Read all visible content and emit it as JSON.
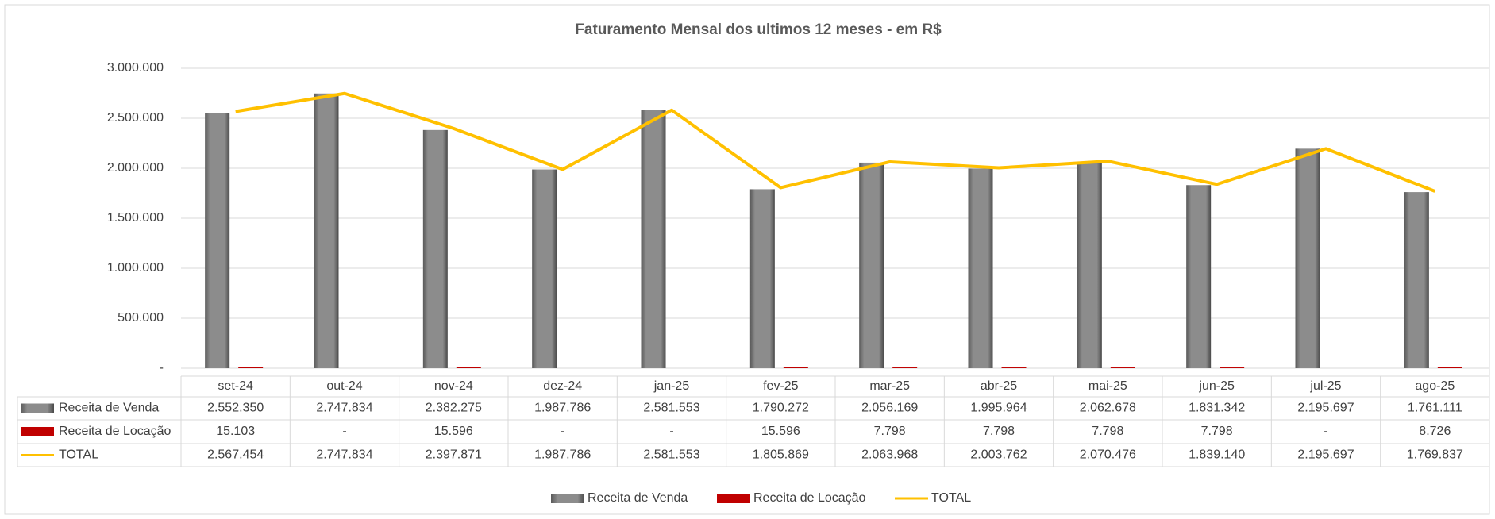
{
  "chart_data": {
    "type": "bar",
    "title": "Faturamento Mensal dos ultimos 12 meses - em R$",
    "categories": [
      "set-24",
      "out-24",
      "nov-24",
      "dez-24",
      "jan-25",
      "fev-25",
      "mar-25",
      "abr-25",
      "mai-25",
      "jun-25",
      "jul-25",
      "ago-25"
    ],
    "series": [
      {
        "name": "Receita de Venda",
        "type": "bar",
        "color": "#808080",
        "values": [
          2552350,
          2747834,
          2382275,
          1987786,
          2581553,
          1790272,
          2056169,
          1995964,
          2062678,
          1831342,
          2195697,
          1761111
        ],
        "value_labels": [
          "2.552.350",
          "2.747.834",
          "2.382.275",
          "1.987.786",
          "2.581.553",
          "1.790.272",
          "2.056.169",
          "1.995.964",
          "2.062.678",
          "1.831.342",
          "2.195.697",
          "1.761.111"
        ]
      },
      {
        "name": "Receita de Locação",
        "type": "bar",
        "color": "#c00000",
        "values": [
          15103,
          0,
          15596,
          0,
          0,
          15596,
          7798,
          7798,
          7798,
          7798,
          0,
          8726
        ],
        "value_labels": [
          "15.103",
          "-",
          "15.596",
          "-",
          "-",
          "15.596",
          "7.798",
          "7.798",
          "7.798",
          "7.798",
          "-",
          "8.726"
        ]
      },
      {
        "name": "TOTAL",
        "type": "line",
        "color": "#ffc000",
        "values": [
          2567454,
          2747834,
          2397871,
          1987786,
          2581553,
          1805869,
          2063968,
          2003762,
          2070476,
          1839140,
          2195697,
          1769837
        ],
        "value_labels": [
          "2.567.454",
          "2.747.834",
          "2.397.871",
          "1.987.786",
          "2.581.553",
          "1.805.869",
          "2.063.968",
          "2.003.762",
          "2.070.476",
          "1.839.140",
          "2.195.697",
          "1.769.837"
        ]
      }
    ],
    "ylim": [
      0,
      3000000
    ],
    "yticks": [
      {
        "value": 0,
        "label": "-"
      },
      {
        "value": 500000,
        "label": "500.000"
      },
      {
        "value": 1000000,
        "label": "1.000.000"
      },
      {
        "value": 1500000,
        "label": "1.500.000"
      },
      {
        "value": 2000000,
        "label": "2.000.000"
      },
      {
        "value": 2500000,
        "label": "2.500.000"
      },
      {
        "value": 3000000,
        "label": "3.000.000"
      }
    ],
    "grid": true,
    "legend": "bottom"
  }
}
